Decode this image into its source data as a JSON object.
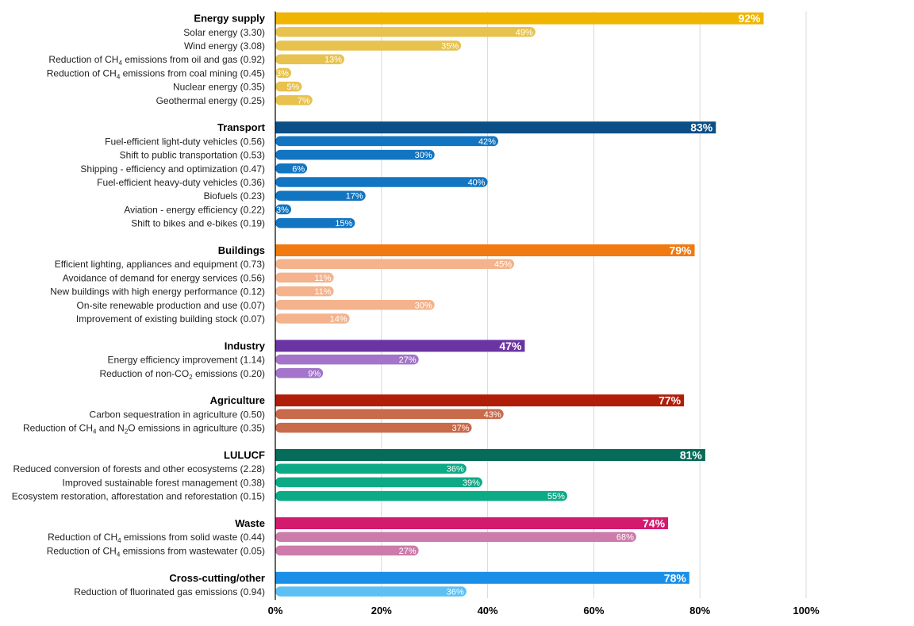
{
  "chart_data": {
    "type": "bar",
    "orientation": "horizontal",
    "xlim": [
      0,
      100
    ],
    "x_ticks": [
      "0%",
      "20%",
      "40%",
      "60%",
      "80%",
      "100%"
    ],
    "grid": true,
    "groups": [
      {
        "name": "Energy supply",
        "value": 92,
        "value_label": "92%",
        "color": "#F0B500",
        "sub_color": "#E8C24E",
        "items": [
          {
            "label": "Solar energy (3.30)",
            "value": 49,
            "value_label": "49%"
          },
          {
            "label": "Wind energy (3.08)",
            "value": 35,
            "value_label": "35%"
          },
          {
            "label_pre": "Reduction of CH",
            "label_sub": "4",
            "label_post": " emissions from oil and gas (0.92)",
            "value": 13,
            "value_label": "13%"
          },
          {
            "label_pre": "Reduction of CH",
            "label_sub": "4",
            "label_post": " emissions from coal mining (0.45)",
            "value": 3,
            "value_label": "3%"
          },
          {
            "label": "Nuclear energy (0.35)",
            "value": 5,
            "value_label": "5%"
          },
          {
            "label": "Geothermal energy (0.25)",
            "value": 7,
            "value_label": "7%"
          }
        ]
      },
      {
        "name": "Transport",
        "value": 83,
        "value_label": "83%",
        "color": "#0B4F86",
        "sub_color": "#1275C1",
        "items": [
          {
            "label": "Fuel-efficient light-duty vehicles (0.56)",
            "value": 42,
            "value_label": "42%"
          },
          {
            "label": "Shift to public transportation (0.53)",
            "value": 30,
            "value_label": "30%"
          },
          {
            "label": "Shipping - efficiency and optimization (0.47)",
            "value": 6,
            "value_label": "6%"
          },
          {
            "label": "Fuel-efficient heavy-duty vehicles (0.36)",
            "value": 40,
            "value_label": "40%"
          },
          {
            "label": "Biofuels (0.23)",
            "value": 17,
            "value_label": "17%"
          },
          {
            "label": "Aviation - energy efficiency (0.22)",
            "value": 3,
            "value_label": "3%"
          },
          {
            "label": "Shift to bikes and e-bikes (0.19)",
            "value": 15,
            "value_label": "15%"
          }
        ]
      },
      {
        "name": "Buildings",
        "value": 79,
        "value_label": "79%",
        "color": "#F07A10",
        "sub_color": "#F4B38C",
        "items": [
          {
            "label": "Efficient lighting, appliances and equipment (0.73)",
            "value": 45,
            "value_label": "45%"
          },
          {
            "label": "Avoidance of demand for energy services (0.56)",
            "value": 11,
            "value_label": "11%"
          },
          {
            "label": "New buildings with high energy performance (0.12)",
            "value": 11,
            "value_label": "11%"
          },
          {
            "label": "On-site renewable production and use (0.07)",
            "value": 30,
            "value_label": "30%"
          },
          {
            "label": "Improvement of existing building stock (0.07)",
            "value": 14,
            "value_label": "14%"
          }
        ]
      },
      {
        "name": "Industry",
        "value": 47,
        "value_label": "47%",
        "color": "#6A34A3",
        "sub_color": "#A374C9",
        "items": [
          {
            "label": "Energy efficiency improvement (1.14)",
            "value": 27,
            "value_label": "27%"
          },
          {
            "label_pre": "Reduction of non-CO",
            "label_sub": "2",
            "label_post": " emissions (0.20)",
            "value": 9,
            "value_label": "9%"
          }
        ]
      },
      {
        "name": "Agriculture",
        "value": 77,
        "value_label": "77%",
        "color": "#B01E0A",
        "sub_color": "#C96A4A",
        "items": [
          {
            "label": "Carbon sequestration in agriculture (0.50)",
            "value": 43,
            "value_label": "43%"
          },
          {
            "label_pre": "Reduction of CH",
            "label_sub": "4",
            "label_mid": " and N",
            "label_sub2": "2",
            "label_post": "O emissions in agriculture (0.35)",
            "value": 37,
            "value_label": "37%"
          }
        ]
      },
      {
        "name": "LULUCF",
        "value": 81,
        "value_label": "81%",
        "color": "#066B59",
        "sub_color": "#0DAA86",
        "items": [
          {
            "label": "Reduced conversion of forests and other ecosystems (2.28)",
            "value": 36,
            "value_label": "36%"
          },
          {
            "label": "Improved sustainable forest management (0.38)",
            "value": 39,
            "value_label": "39%"
          },
          {
            "label": "Ecosystem restoration, afforestation and reforestation (0.15)",
            "value": 55,
            "value_label": "55%"
          }
        ]
      },
      {
        "name": "Waste",
        "value": 74,
        "value_label": "74%",
        "color": "#D21A6E",
        "sub_color": "#CC7BAA",
        "items": [
          {
            "label_pre": "Reduction of CH",
            "label_sub": "4",
            "label_post": " emissions from solid waste (0.44)",
            "value": 68,
            "value_label": "68%"
          },
          {
            "label_pre": "Reduction of CH",
            "label_sub": "4",
            "label_post": " emissions from wastewater (0.05)",
            "value": 27,
            "value_label": "27%"
          }
        ]
      },
      {
        "name": "Cross-cutting/other",
        "value": 78,
        "value_label": "78%",
        "color": "#1A8FE8",
        "sub_color": "#5CC0F4",
        "items": [
          {
            "label": "Reduction of fluorinated gas emissions (0.94)",
            "value": 36,
            "value_label": "36%"
          }
        ]
      }
    ]
  }
}
